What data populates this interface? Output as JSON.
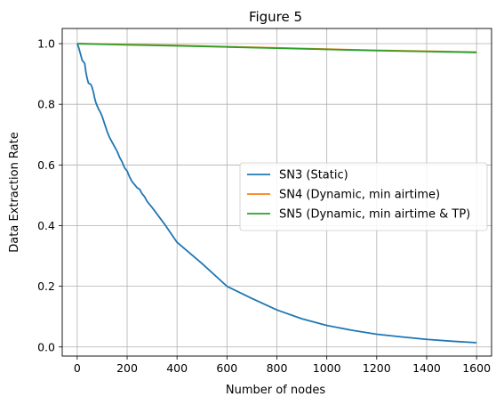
{
  "chart_data": {
    "type": "line",
    "title": "Figure 5",
    "xlabel": "Number of nodes",
    "ylabel": "Data Extraction Rate",
    "xlim": [
      -60,
      1660
    ],
    "ylim": [
      -0.03,
      1.05
    ],
    "xticks": [
      0,
      200,
      400,
      600,
      800,
      1000,
      1200,
      1400,
      1600
    ],
    "yticks": [
      0.0,
      0.2,
      0.4,
      0.6,
      0.8,
      1.0
    ],
    "grid": true,
    "legend_position": "center-right",
    "series": [
      {
        "name": "SN3 (Static)",
        "color": "#1f77b4",
        "x": [
          0,
          5,
          10,
          15,
          20,
          25,
          30,
          35,
          40,
          45,
          50,
          55,
          60,
          65,
          70,
          75,
          80,
          85,
          90,
          95,
          100,
          110,
          120,
          130,
          140,
          150,
          160,
          170,
          180,
          190,
          200,
          210,
          220,
          230,
          240,
          250,
          260,
          270,
          280,
          300,
          350,
          400,
          500,
          600,
          700,
          800,
          900,
          1000,
          1100,
          1200,
          1300,
          1400,
          1500,
          1600
        ],
        "y": [
          1.0,
          0.99,
          0.975,
          0.96,
          0.945,
          0.94,
          0.935,
          0.905,
          0.885,
          0.87,
          0.868,
          0.865,
          0.855,
          0.84,
          0.82,
          0.805,
          0.795,
          0.785,
          0.778,
          0.77,
          0.76,
          0.735,
          0.71,
          0.69,
          0.675,
          0.66,
          0.645,
          0.625,
          0.61,
          0.59,
          0.58,
          0.56,
          0.545,
          0.535,
          0.525,
          0.52,
          0.505,
          0.495,
          0.48,
          0.46,
          0.405,
          0.345,
          0.275,
          0.2,
          0.16,
          0.122,
          0.093,
          0.071,
          0.055,
          0.042,
          0.033,
          0.025,
          0.019,
          0.014
        ]
      },
      {
        "name": "SN4 (Dynamic, min airtime)",
        "color": "#ff7f0e",
        "x": [
          0,
          100,
          200,
          400,
          600,
          800,
          1000,
          1200,
          1400,
          1600
        ],
        "y": [
          1.0,
          0.999,
          0.997,
          0.994,
          0.99,
          0.986,
          0.982,
          0.978,
          0.975,
          0.972
        ]
      },
      {
        "name": "SN5 (Dynamic, min airtime & TP)",
        "color": "#2ca02c",
        "x": [
          0,
          100,
          200,
          400,
          600,
          800,
          1000,
          1100,
          1200,
          1400,
          1600
        ],
        "y": [
          1.0,
          0.998,
          0.996,
          0.993,
          0.989,
          0.985,
          0.981,
          0.979,
          0.977,
          0.974,
          0.971
        ]
      }
    ]
  }
}
